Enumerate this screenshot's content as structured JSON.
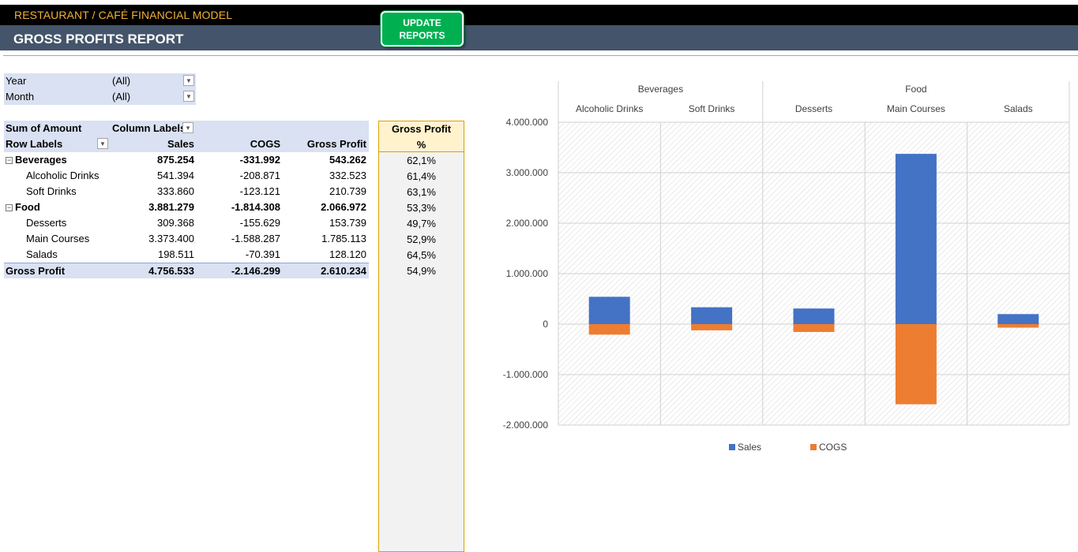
{
  "header": {
    "app_title": "RESTAURANT / CAFÉ FINANCIAL MODEL",
    "report_title": "GROSS PROFITS REPORT",
    "update_button": [
      "UPDATE",
      "REPORTS"
    ],
    "brand_color": "#f2b134",
    "bar_color": "#44546a"
  },
  "filters": [
    {
      "label": "Year",
      "value": "(All)"
    },
    {
      "label": "Month",
      "value": "(All)"
    }
  ],
  "pivot": {
    "corner": "Sum of Amount",
    "column_labels": "Column Labels",
    "row_labels": "Row Labels",
    "columns": [
      "Sales",
      "COGS",
      "Gross Profit"
    ],
    "rows": [
      {
        "label": "Beverages",
        "level": 0,
        "sales": "875.254",
        "cogs": "-331.992",
        "gp": "543.262",
        "pct": "62,1%"
      },
      {
        "label": "Alcoholic Drinks",
        "level": 1,
        "sales": "541.394",
        "cogs": "-208.871",
        "gp": "332.523",
        "pct": "61,4%"
      },
      {
        "label": "Soft Drinks",
        "level": 1,
        "sales": "333.860",
        "cogs": "-123.121",
        "gp": "210.739",
        "pct": "63,1%"
      },
      {
        "label": "Food",
        "level": 0,
        "sales": "3.881.279",
        "cogs": "-1.814.308",
        "gp": "2.066.972",
        "pct": "53,3%"
      },
      {
        "label": "Desserts",
        "level": 1,
        "sales": "309.368",
        "cogs": "-155.629",
        "gp": "153.739",
        "pct": "49,7%"
      },
      {
        "label": "Main Courses",
        "level": 1,
        "sales": "3.373.400",
        "cogs": "-1.588.287",
        "gp": "1.785.113",
        "pct": "52,9%"
      },
      {
        "label": "Salads",
        "level": 1,
        "sales": "198.511",
        "cogs": "-70.391",
        "gp": "128.120",
        "pct": "64,5%"
      }
    ],
    "total": {
      "label": "Gross Profit",
      "sales": "4.756.533",
      "cogs": "-2.146.299",
      "gp": "2.610.234",
      "pct": "54,9%"
    }
  },
  "gp_percent_header": [
    "Gross Profit",
    "%"
  ],
  "chart_data": {
    "type": "bar",
    "stacked": true,
    "groups": [
      {
        "name": "Beverages",
        "categories": [
          "Alcoholic Drinks",
          "Soft Drinks"
        ]
      },
      {
        "name": "Food",
        "categories": [
          "Desserts",
          "Main Courses",
          "Salads"
        ]
      }
    ],
    "categories": [
      "Alcoholic Drinks",
      "Soft Drinks",
      "Desserts",
      "Main Courses",
      "Salads"
    ],
    "series": [
      {
        "name": "Sales",
        "color": "#4472c4",
        "values": [
          541394,
          333860,
          309368,
          3373400,
          198511
        ]
      },
      {
        "name": "COGS",
        "color": "#ed7d31",
        "values": [
          -208871,
          -123121,
          -155629,
          -1588287,
          -70391
        ]
      }
    ],
    "ylim": [
      -2000000,
      4000000
    ],
    "yticks": [
      4000000,
      3000000,
      2000000,
      1000000,
      0,
      -1000000,
      -2000000
    ],
    "ytick_labels": [
      "4.000.000",
      "3.000.000",
      "2.000.000",
      "1.000.000",
      "0",
      "-1.000.000",
      "-2.000.000"
    ],
    "legend_position": "bottom"
  }
}
